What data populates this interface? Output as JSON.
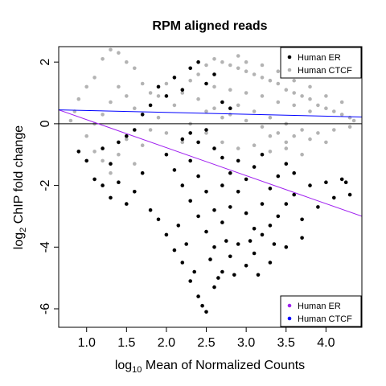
{
  "chart_data": {
    "type": "scatter",
    "title": "RPM aligned reads",
    "xlabel": {
      "prefix": "log",
      "subscript": "10",
      "rest": " Mean of Normalized Counts"
    },
    "ylabel": {
      "prefix": "log",
      "subscript": "2",
      "rest": " ChIP fold change"
    },
    "xlim": [
      0.65,
      4.45
    ],
    "ylim": [
      -6.6,
      2.5
    ],
    "x_ticks": [
      1.0,
      1.5,
      2.0,
      2.5,
      3.0,
      3.5,
      4.0
    ],
    "x_tick_labels": [
      "1.0",
      "1.5",
      "2.0",
      "2.5",
      "3.0",
      "3.5",
      "4.0"
    ],
    "y_ticks": [
      -6,
      -4,
      -2,
      0,
      2
    ],
    "y_tick_labels": [
      "-6",
      "-4",
      "-2",
      "0",
      "2"
    ],
    "reference_line_y": 0,
    "series": [
      {
        "name": "Human ER",
        "color": "#000000",
        "points": [
          [
            1.9,
            1.2
          ],
          [
            2.0,
            0.9
          ],
          [
            2.1,
            1.5
          ],
          [
            2.3,
            1.8
          ],
          [
            2.4,
            2.0
          ],
          [
            2.5,
            1.3
          ],
          [
            2.6,
            1.6
          ],
          [
            2.2,
            1.1
          ],
          [
            2.7,
            0.7
          ],
          [
            2.8,
            0.5
          ],
          [
            1.8,
            0.6
          ],
          [
            1.7,
            0.3
          ],
          [
            1.6,
            -0.2
          ],
          [
            1.5,
            -0.4
          ],
          [
            1.4,
            -0.6
          ],
          [
            1.3,
            -1.3
          ],
          [
            1.2,
            -2.0
          ],
          [
            1.3,
            -2.4
          ],
          [
            1.4,
            -1.9
          ],
          [
            1.5,
            -2.6
          ],
          [
            1.6,
            -2.2
          ],
          [
            1.7,
            -1.6
          ],
          [
            1.8,
            -2.8
          ],
          [
            1.9,
            -3.1
          ],
          [
            2.0,
            -3.6
          ],
          [
            2.1,
            -4.1
          ],
          [
            2.2,
            -4.5
          ],
          [
            2.3,
            -5.1
          ],
          [
            2.4,
            -5.6
          ],
          [
            2.5,
            -6.1
          ],
          [
            2.45,
            -5.9
          ],
          [
            2.6,
            -5.3
          ],
          [
            2.7,
            -4.8
          ],
          [
            2.8,
            -4.3
          ],
          [
            2.9,
            -3.9
          ],
          [
            3.0,
            -4.6
          ],
          [
            3.1,
            -4.2
          ],
          [
            3.2,
            -3.6
          ],
          [
            3.3,
            -3.3
          ],
          [
            3.4,
            -3.0
          ],
          [
            3.5,
            -2.6
          ],
          [
            3.6,
            -2.3
          ],
          [
            3.7,
            -3.1
          ],
          [
            3.8,
            -2.0
          ],
          [
            3.9,
            -2.7
          ],
          [
            4.0,
            -1.9
          ],
          [
            4.1,
            -2.4
          ],
          [
            4.2,
            -1.8
          ],
          [
            4.3,
            -2.3
          ],
          [
            4.25,
            -1.9
          ],
          [
            2.0,
            -1.0
          ],
          [
            2.1,
            -1.5
          ],
          [
            2.2,
            -2.0
          ],
          [
            2.3,
            -2.5
          ],
          [
            2.4,
            -3.0
          ],
          [
            2.5,
            -3.5
          ],
          [
            2.6,
            -4.0
          ],
          [
            2.7,
            -3.2
          ],
          [
            2.8,
            -2.7
          ],
          [
            2.9,
            -2.2
          ],
          [
            3.0,
            -1.8
          ],
          [
            3.1,
            -1.4
          ],
          [
            3.2,
            -1.0
          ],
          [
            2.3,
            -1.2
          ],
          [
            2.4,
            -1.7
          ],
          [
            2.5,
            -2.2
          ],
          [
            2.6,
            -2.8
          ],
          [
            2.7,
            -2.0
          ],
          [
            2.8,
            -1.6
          ],
          [
            2.9,
            -1.2
          ],
          [
            3.0,
            -2.9
          ],
          [
            3.1,
            -3.4
          ],
          [
            3.2,
            -2.6
          ],
          [
            3.3,
            -2.1
          ],
          [
            3.4,
            -1.7
          ],
          [
            3.5,
            -1.3
          ],
          [
            3.6,
            -1.6
          ],
          [
            3.3,
            -4.5
          ],
          [
            3.5,
            -4.0
          ],
          [
            3.7,
            -3.7
          ],
          [
            1.1,
            -1.8
          ],
          [
            1.0,
            -1.2
          ],
          [
            0.9,
            -0.9
          ],
          [
            1.2,
            -0.8
          ],
          [
            2.3,
            -0.3
          ],
          [
            2.4,
            -0.6
          ],
          [
            2.6,
            -0.8
          ],
          [
            2.7,
            -1.1
          ],
          [
            2.2,
            -0.5
          ],
          [
            2.5,
            -0.2
          ],
          [
            2.35,
            -4.8
          ],
          [
            2.55,
            -4.4
          ],
          [
            2.65,
            -5.0
          ],
          [
            2.25,
            -3.9
          ],
          [
            2.75,
            -3.8
          ],
          [
            2.15,
            -3.3
          ],
          [
            2.85,
            -4.9
          ],
          [
            3.05,
            -3.8
          ],
          [
            3.15,
            -4.9
          ],
          [
            3.35,
            -3.9
          ]
        ]
      },
      {
        "name": "Human CTCF",
        "color": "#b3b3b3",
        "points": [
          [
            1.1,
            1.5
          ],
          [
            1.2,
            2.1
          ],
          [
            1.3,
            2.4
          ],
          [
            1.4,
            2.3
          ],
          [
            1.5,
            2.0
          ],
          [
            1.6,
            1.8
          ],
          [
            1.0,
            1.2
          ],
          [
            0.9,
            0.8
          ],
          [
            0.85,
            0.4
          ],
          [
            0.8,
            0.1
          ],
          [
            1.0,
            -0.4
          ],
          [
            1.1,
            -0.9
          ],
          [
            1.2,
            -1.2
          ],
          [
            1.3,
            -1.6
          ],
          [
            1.4,
            -1.0
          ],
          [
            1.5,
            -0.5
          ],
          [
            1.6,
            -1.3
          ],
          [
            1.7,
            -0.7
          ],
          [
            1.8,
            -0.2
          ],
          [
            1.9,
            0.2
          ],
          [
            2.1,
            0.6
          ],
          [
            2.2,
            1.0
          ],
          [
            2.3,
            1.4
          ],
          [
            2.4,
            1.6
          ],
          [
            2.5,
            1.9
          ],
          [
            2.6,
            2.1
          ],
          [
            2.7,
            2.0
          ],
          [
            2.8,
            1.9
          ],
          [
            2.9,
            1.8
          ],
          [
            3.0,
            1.7
          ],
          [
            3.1,
            1.6
          ],
          [
            3.2,
            1.5
          ],
          [
            3.3,
            1.4
          ],
          [
            3.4,
            1.3
          ],
          [
            3.5,
            1.1
          ],
          [
            3.6,
            1.0
          ],
          [
            3.7,
            0.9
          ],
          [
            3.8,
            0.8
          ],
          [
            3.9,
            0.6
          ],
          [
            4.0,
            0.5
          ],
          [
            4.1,
            0.4
          ],
          [
            4.2,
            0.3
          ],
          [
            4.3,
            0.2
          ],
          [
            4.35,
            0.1
          ],
          [
            2.4,
            0.8
          ],
          [
            2.6,
            0.5
          ],
          [
            2.8,
            0.3
          ],
          [
            3.0,
            0.1
          ],
          [
            3.2,
            -0.1
          ],
          [
            3.4,
            -0.3
          ],
          [
            3.6,
            -0.4
          ],
          [
            3.8,
            -0.5
          ],
          [
            4.0,
            -0.6
          ],
          [
            2.5,
            -0.3
          ],
          [
            2.7,
            -0.6
          ],
          [
            2.9,
            -0.8
          ],
          [
            3.1,
            -0.7
          ],
          [
            3.3,
            -0.9
          ],
          [
            3.5,
            -0.8
          ],
          [
            3.7,
            -1.0
          ],
          [
            2.6,
            1.2
          ],
          [
            2.8,
            1.1
          ],
          [
            3.0,
            1.0
          ],
          [
            3.2,
            0.9
          ],
          [
            3.4,
            0.7
          ],
          [
            3.6,
            0.6
          ],
          [
            3.8,
            0.4
          ],
          [
            2.5,
            0.4
          ],
          [
            2.7,
            0.2
          ],
          [
            2.9,
            0.6
          ],
          [
            3.1,
            0.4
          ],
          [
            3.3,
            0.2
          ],
          [
            3.5,
            0.0
          ],
          [
            3.7,
            -0.2
          ],
          [
            3.9,
            -0.3
          ],
          [
            4.1,
            -0.2
          ],
          [
            4.3,
            -0.1
          ],
          [
            2.0,
            -0.3
          ],
          [
            2.2,
            -0.6
          ],
          [
            2.3,
            0.0
          ],
          [
            1.7,
            1.3
          ],
          [
            1.8,
            1.0
          ],
          [
            1.9,
            0.9
          ],
          [
            2.0,
            1.3
          ],
          [
            1.6,
            0.5
          ],
          [
            1.5,
            0.9
          ],
          [
            1.4,
            1.2
          ],
          [
            1.3,
            0.7
          ],
          [
            1.2,
            0.3
          ],
          [
            1.1,
            0.0
          ],
          [
            3.0,
            2.0
          ],
          [
            3.2,
            1.9
          ],
          [
            2.9,
            2.2
          ],
          [
            3.4,
            1.7
          ],
          [
            3.6,
            1.4
          ],
          [
            3.8,
            1.2
          ],
          [
            4.0,
            0.9
          ],
          [
            4.2,
            0.7
          ],
          [
            3.3,
            -0.4
          ],
          [
            3.5,
            -0.6
          ]
        ]
      }
    ],
    "fit_lines": [
      {
        "name": "Human ER",
        "color": "#a020f0",
        "x": [
          0.65,
          4.45
        ],
        "y": [
          0.45,
          -3.0
        ]
      },
      {
        "name": "Human CTCF",
        "color": "#0000ff",
        "x": [
          0.65,
          4.45
        ],
        "y": [
          0.45,
          0.22
        ]
      }
    ],
    "legend_top": {
      "position": "top-right",
      "items": [
        {
          "label": "Human ER",
          "color": "#000000"
        },
        {
          "label": "Human CTCF",
          "color": "#b3b3b3"
        }
      ]
    },
    "legend_bottom": {
      "position": "bottom-right",
      "items": [
        {
          "label": "Human ER",
          "color": "#a020f0"
        },
        {
          "label": "Human CTCF",
          "color": "#0000ff"
        }
      ]
    }
  }
}
